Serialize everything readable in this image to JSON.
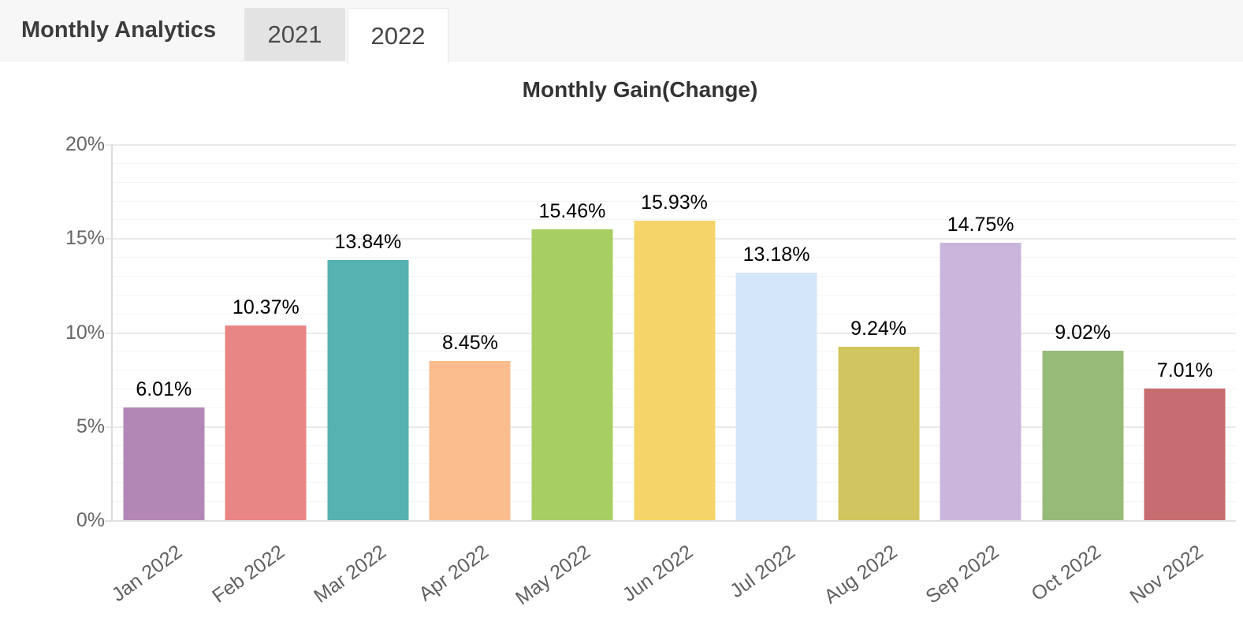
{
  "header": {
    "title": "Monthly Analytics",
    "tabs": [
      {
        "label": "2021",
        "active": false
      },
      {
        "label": "2022",
        "active": true
      }
    ]
  },
  "chart_data": {
    "type": "bar",
    "title": "Monthly Gain(Change)",
    "categories": [
      "Jan 2022",
      "Feb 2022",
      "Mar 2022",
      "Apr 2022",
      "May 2022",
      "Jun 2022",
      "Jul 2022",
      "Aug 2022",
      "Sep 2022",
      "Oct 2022",
      "Nov 2022"
    ],
    "values": [
      6.01,
      10.37,
      13.84,
      8.45,
      15.46,
      15.93,
      13.18,
      9.24,
      14.75,
      9.02,
      7.01
    ],
    "value_labels": [
      "6.01%",
      "10.37%",
      "13.84%",
      "8.45%",
      "15.46%",
      "15.93%",
      "13.18%",
      "9.24%",
      "14.75%",
      "9.02%",
      "7.01%"
    ],
    "bar_colors": [
      "#b287b5",
      "#e88585",
      "#56b1b1",
      "#fbbd8d",
      "#a6ce63",
      "#f5d469",
      "#d3e7f8",
      "#d1c55f",
      "#cab6dd",
      "#98ba78",
      "#c76c70"
    ],
    "yticks": [
      "0%",
      "5%",
      "10%",
      "15%",
      "20%"
    ],
    "ylim": [
      0,
      20
    ],
    "xlabel": "",
    "ylabel": "",
    "grid": "horizontal: major every 5%, minor every 1%",
    "legend": "none"
  }
}
